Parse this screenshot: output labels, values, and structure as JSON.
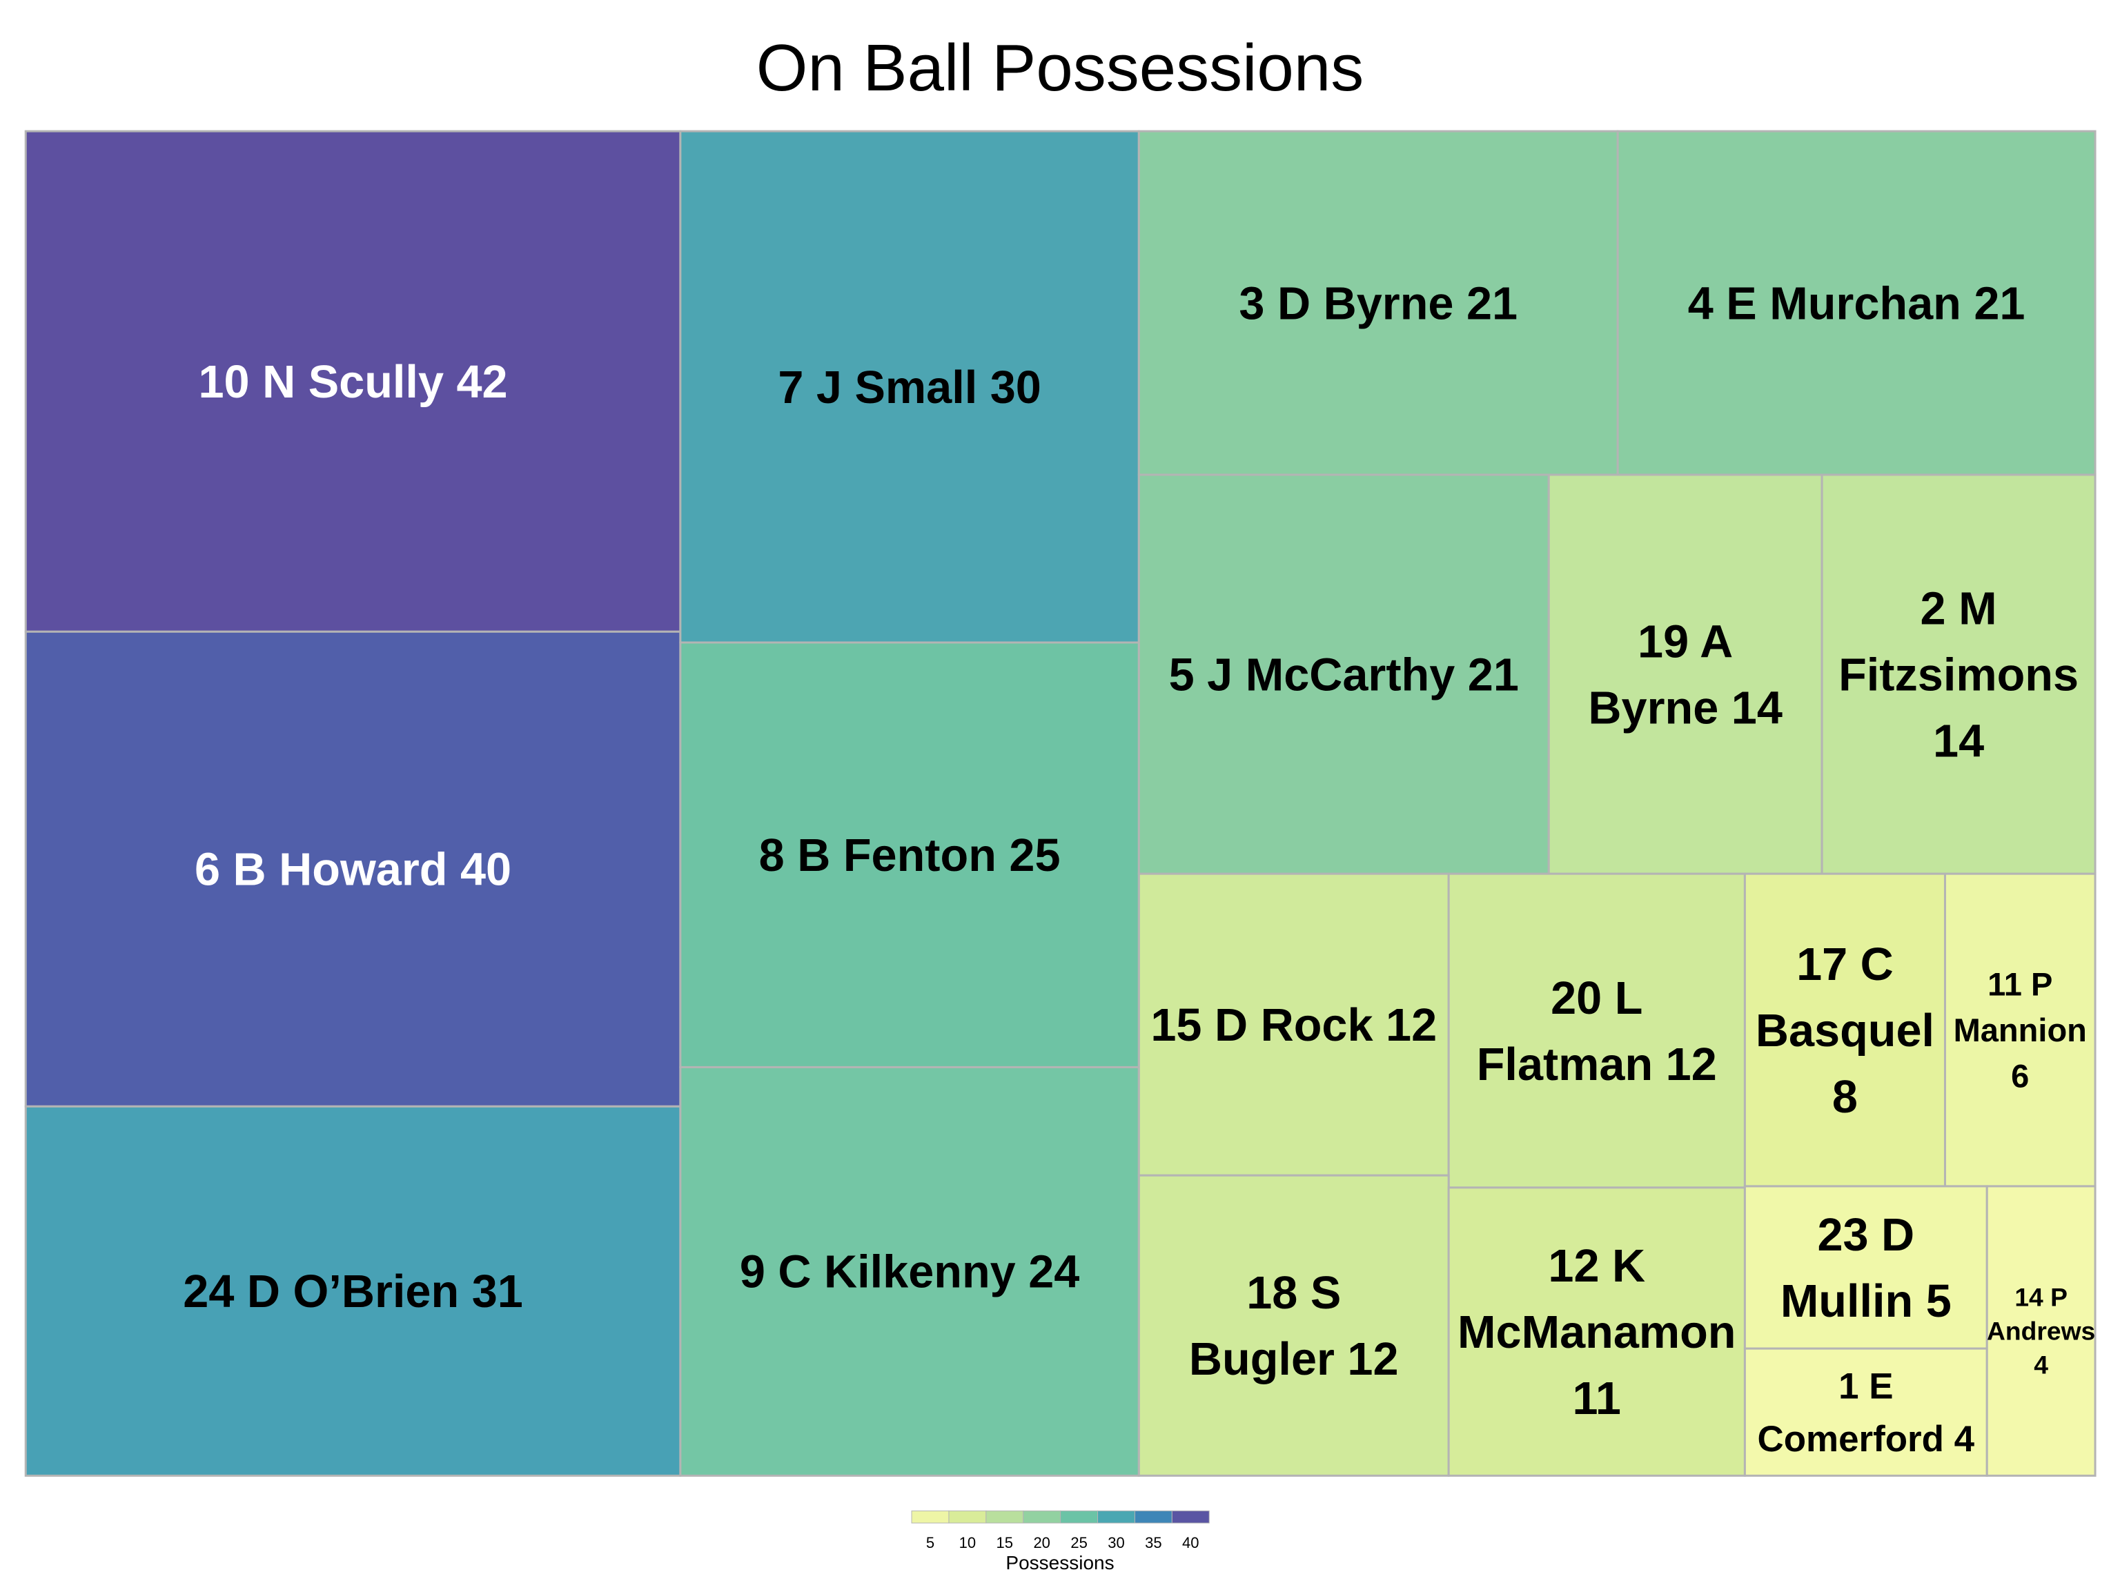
{
  "chart_data": {
    "type": "treemap",
    "title": "On Ball Possessions",
    "colorbar_label": "Possessions",
    "colorbar_ticks": [
      "5",
      "10",
      "15",
      "20",
      "25",
      "30",
      "35",
      "40"
    ],
    "colorbar_colors": [
      "#eef5a6",
      "#d9ec99",
      "#b9df9d",
      "#92d1a1",
      "#6bc3a6",
      "#4aa7b2",
      "#3e86b7",
      "#5a55a3"
    ],
    "items": [
      {
        "label": "10  N Scully 42",
        "lines": [
          "10  N Scully 42"
        ],
        "value": 42,
        "color": "#5d50a0",
        "text_color": "#ffffff"
      },
      {
        "label": "6  B Howard 40",
        "lines": [
          "6  B Howard 40"
        ],
        "value": 40,
        "color": "#515faa",
        "text_color": "#ffffff"
      },
      {
        "label": "24  D O’Brien 31",
        "lines": [
          "24  D O’Brien 31"
        ],
        "value": 31,
        "color": "#48a1b5",
        "text_color": "#000000"
      },
      {
        "label": "7  J Small 30",
        "lines": [
          "7  J Small 30"
        ],
        "value": 30,
        "color": "#4da5b2",
        "text_color": "#000000"
      },
      {
        "label": "8  B Fenton 25",
        "lines": [
          "8  B Fenton 25"
        ],
        "value": 25,
        "color": "#6ec3a4",
        "text_color": "#000000"
      },
      {
        "label": "9  C Kilkenny 24",
        "lines": [
          "9  C Kilkenny 24"
        ],
        "value": 24,
        "color": "#74c6a5",
        "text_color": "#000000"
      },
      {
        "label": "3  D Byrne 21",
        "lines": [
          "3  D Byrne 21"
        ],
        "value": 21,
        "color": "#8acda2",
        "text_color": "#000000"
      },
      {
        "label": "4  E Murchan 21",
        "lines": [
          "4  E Murchan 21"
        ],
        "value": 21,
        "color": "#8acda2",
        "text_color": "#000000"
      },
      {
        "label": "5  J McCarthy 21",
        "lines": [
          "5  J McCarthy 21"
        ],
        "value": 21,
        "color": "#8acda2",
        "text_color": "#000000"
      },
      {
        "label": "19 A Byrne 14",
        "lines": [
          "19 A",
          "Byrne 14"
        ],
        "value": 14,
        "color": "#c2e59d",
        "text_color": "#000000"
      },
      {
        "label": "2 M Fitzsimons 14",
        "lines": [
          "2 M",
          "Fitzsimons",
          "14"
        ],
        "value": 14,
        "color": "#c2e59d",
        "text_color": "#000000"
      },
      {
        "label": "15  D Rock 12",
        "lines": [
          "15  D Rock 12"
        ],
        "value": 12,
        "color": "#d0ea9b",
        "text_color": "#000000"
      },
      {
        "label": "20 L Flatman 12",
        "lines": [
          "20 L",
          "Flatman 12"
        ],
        "value": 12,
        "color": "#d0ea9b",
        "text_color": "#000000"
      },
      {
        "label": "17 C Basquel 8",
        "lines": [
          "17 C",
          "Basquel",
          "8"
        ],
        "value": 8,
        "color": "#e4f29c",
        "text_color": "#000000"
      },
      {
        "label": "11 P Mannion 6",
        "lines": [
          "11 P",
          "Mannion",
          "6"
        ],
        "value": 6,
        "color": "#ecf6a6",
        "text_color": "#000000"
      },
      {
        "label": "18 S Bugler 12",
        "lines": [
          "18 S",
          "Bugler 12"
        ],
        "value": 12,
        "color": "#d0ea9b",
        "text_color": "#000000"
      },
      {
        "label": "12 K McManamon 11",
        "lines": [
          "12 K",
          "McManamon",
          "11"
        ],
        "value": 11,
        "color": "#d6ec9a",
        "text_color": "#000000"
      },
      {
        "label": "23 D Mullin 5",
        "lines": [
          "23 D",
          "Mullin 5"
        ],
        "value": 5,
        "color": "#f0f8a9",
        "text_color": "#000000"
      },
      {
        "label": "1 E Comerford 4",
        "lines": [
          "1 E",
          "Comerford 4"
        ],
        "value": 4,
        "color": "#f3f9ac",
        "text_color": "#000000"
      },
      {
        "label": "14 P Andrews 4",
        "lines": [
          "14 P",
          "Andrews",
          "4"
        ],
        "value": 4,
        "color": "#f3f9ac",
        "text_color": "#000000"
      }
    ]
  }
}
